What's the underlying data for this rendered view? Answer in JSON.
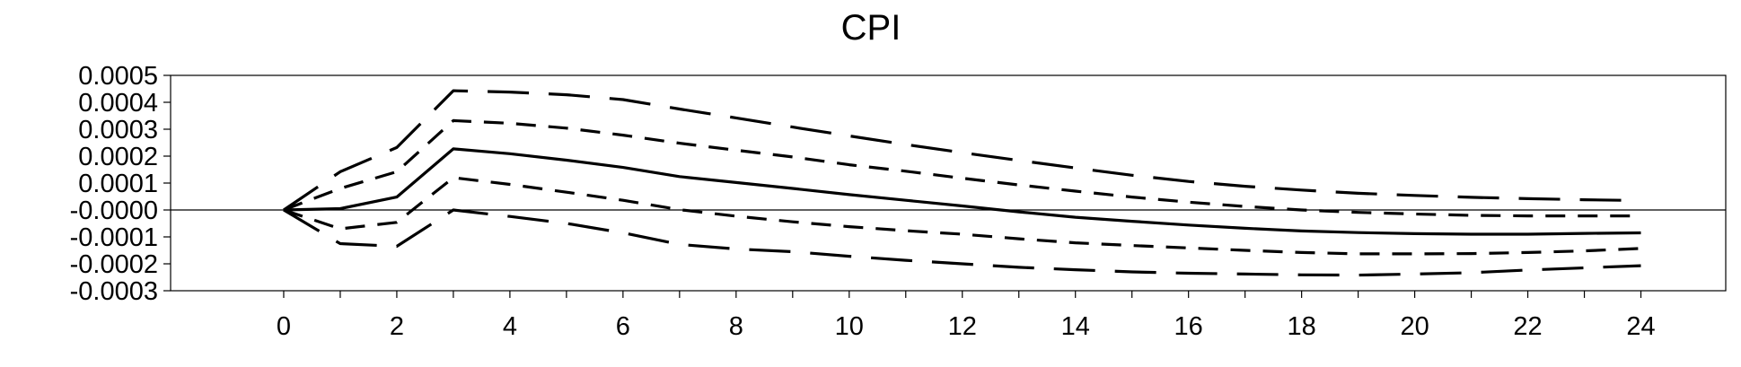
{
  "chart_data": {
    "type": "line",
    "title": "CPI",
    "xlabel": "",
    "ylabel": "",
    "xlim": [
      -2,
      25.5
    ],
    "ylim": [
      -0.0003,
      0.0005
    ],
    "x_ticks": [
      "0",
      "2",
      "4",
      "6",
      "8",
      "10",
      "12",
      "14",
      "16",
      "18",
      "20",
      "22",
      "24"
    ],
    "y_ticks": [
      {
        "value": 0.0005,
        "label": "0.0005"
      },
      {
        "value": 0.0004,
        "label": "0.0004"
      },
      {
        "value": 0.0003,
        "label": "0.0003"
      },
      {
        "value": 0.0002,
        "label": "0.0002"
      },
      {
        "value": 0.0001,
        "label": "0.0001"
      },
      {
        "value": 0.0,
        "label": "-0.0000"
      },
      {
        "value": -0.0001,
        "label": "-0.0001"
      },
      {
        "value": -0.0002,
        "label": "-0.0002"
      },
      {
        "value": -0.0003,
        "label": "-0.0003"
      }
    ],
    "grid": false,
    "zero_line": true,
    "x": [
      0,
      1,
      2,
      3,
      4,
      5,
      6,
      7,
      8,
      9,
      10,
      11,
      12,
      13,
      14,
      15,
      16,
      17,
      18,
      19,
      20,
      21,
      22,
      23,
      24
    ],
    "series": [
      {
        "style": "solid",
        "values": [
          0,
          5e-06,
          4.8e-05,
          0.000227,
          0.000209,
          0.000185,
          0.000158,
          0.000124,
          0.000102,
          8e-05,
          5.7e-05,
          3.6e-05,
          1.5e-05,
          -7e-06,
          -2.7e-05,
          -4.2e-05,
          -5.6e-05,
          -6.8e-05,
          -7.8e-05,
          -8.4e-05,
          -8.8e-05,
          -9e-05,
          -9e-05,
          -8.7e-05,
          -8.5e-05
        ]
      },
      {
        "style": "dash-short",
        "values": [
          0,
          8e-05,
          0.000142,
          0.000332,
          0.000322,
          0.000304,
          0.000278,
          0.000248,
          0.000222,
          0.000197,
          0.000168,
          0.000144,
          0.000118,
          9.3e-05,
          7e-05,
          4.8e-05,
          2.9e-05,
          1.3e-05,
          0,
          -9e-06,
          -1.5e-05,
          -2e-05,
          -2.2e-05,
          -2.2e-05,
          -2.2e-05
        ]
      },
      {
        "style": "dash-short",
        "values": [
          0,
          -7e-05,
          -4.6e-05,
          0.00012,
          9.5e-05,
          6.6e-05,
          3.6e-05,
          1e-06,
          -2.3e-05,
          -4.4e-05,
          -6.2e-05,
          -7.7e-05,
          -9e-05,
          -0.000107,
          -0.000122,
          -0.000132,
          -0.000141,
          -0.00015,
          -0.000158,
          -0.000163,
          -0.000163,
          -0.000162,
          -0.000158,
          -0.000152,
          -0.000143
        ]
      },
      {
        "style": "dash-long",
        "values": [
          0,
          0.000142,
          0.000232,
          0.000443,
          0.000438,
          0.000428,
          0.00041,
          0.000375,
          0.000342,
          0.000308,
          0.000275,
          0.000243,
          0.000213,
          0.000184,
          0.000156,
          0.000129,
          0.000106,
          8.8e-05,
          7.4e-05,
          6.2e-05,
          5.4e-05,
          4.7e-05,
          4.2e-05,
          3.8e-05,
          3.5e-05
        ]
      },
      {
        "style": "dash-long",
        "values": [
          0,
          -0.000125,
          -0.000135,
          0,
          -2.4e-05,
          -5e-05,
          -8.5e-05,
          -0.000128,
          -0.000145,
          -0.000155,
          -0.000172,
          -0.000187,
          -0.0002,
          -0.000213,
          -0.000222,
          -0.00023,
          -0.000235,
          -0.000238,
          -0.000241,
          -0.000242,
          -0.000238,
          -0.000233,
          -0.000223,
          -0.000215,
          -0.000207
        ]
      }
    ]
  }
}
